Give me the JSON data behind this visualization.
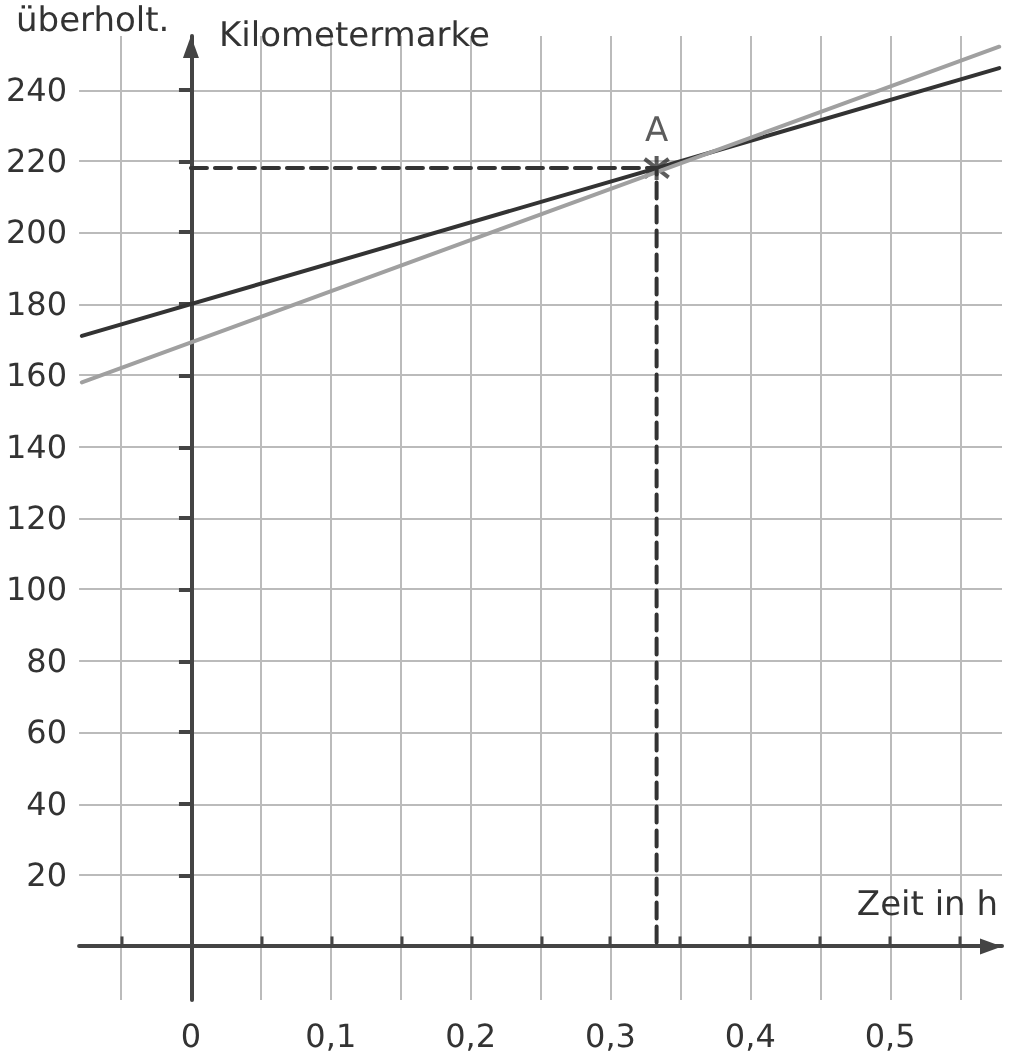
{
  "chart_data": {
    "type": "line",
    "xlabel": "Zeit in h",
    "ylabel": "Kilometermarke",
    "annotations": [
      "überholt.",
      {
        "text": "A",
        "x": 0.333,
        "y": 218
      }
    ],
    "xlim": [
      -0.08,
      0.58
    ],
    "ylim": [
      -15,
      255
    ],
    "xticks": [
      {
        "value": -0.05,
        "label": null
      },
      {
        "value": 0,
        "label": "0"
      },
      {
        "value": 0.05,
        "label": null
      },
      {
        "value": 0.1,
        "label": "0,1"
      },
      {
        "value": 0.15,
        "label": null
      },
      {
        "value": 0.2,
        "label": "0,2"
      },
      {
        "value": 0.25,
        "label": null
      },
      {
        "value": 0.3,
        "label": "0,3"
      },
      {
        "value": 0.35,
        "label": null
      },
      {
        "value": 0.4,
        "label": "0,4"
      },
      {
        "value": 0.45,
        "label": null
      },
      {
        "value": 0.5,
        "label": "0,5"
      },
      {
        "value": 0.55,
        "label": null
      }
    ],
    "yticks": [
      20,
      40,
      60,
      80,
      100,
      120,
      140,
      160,
      180,
      200,
      220,
      240
    ],
    "grid": true,
    "series": [
      {
        "color": "#333333",
        "x": [
          -0.078,
          0.578
        ],
        "values": [
          171,
          246
        ],
        "marker": "none",
        "line_style": "solid"
      },
      {
        "color": "#a0a0a0",
        "x": [
          -0.078,
          0.578
        ],
        "values": [
          158,
          252
        ],
        "marker": "none",
        "line_style": "solid"
      },
      {
        "color": "#333333",
        "x": [
          0,
          0.333,
          0.333
        ],
        "values": [
          218,
          218,
          0
        ],
        "marker": "none",
        "line_style": "dashed"
      },
      {
        "type": "scatter",
        "color": "#333333",
        "x": [
          0.333
        ],
        "values": [
          218
        ],
        "marker": "cross"
      }
    ]
  }
}
